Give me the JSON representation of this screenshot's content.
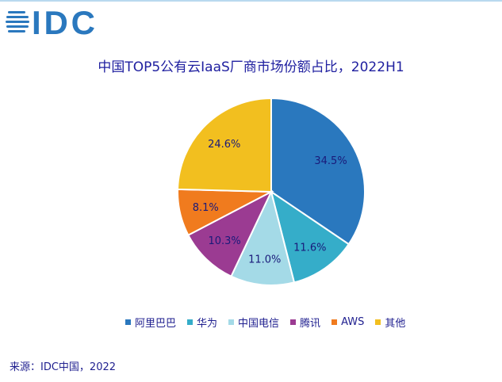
{
  "logo_text": "IDC",
  "source": "来源：IDC中国，2022",
  "chart_data": {
    "type": "pie",
    "title": "中国TOP5公有云IaaS厂商市场份额占比，2022H1",
    "categories": [
      "阿里巴巴",
      "华为",
      "中国电信",
      "腾讯",
      "AWS",
      "其他"
    ],
    "values": [
      34.5,
      11.6,
      11.0,
      10.3,
      8.1,
      24.6
    ],
    "labels": [
      "34.5%",
      "11.6%",
      "11.0%",
      "10.3%",
      "8.1%",
      "24.6%"
    ],
    "colors": [
      "#2a78be",
      "#35adc9",
      "#a4dae7",
      "#9b3b92",
      "#f07b1e",
      "#f2bf1f"
    ],
    "legend_position": "bottom",
    "start": "top-clockwise"
  }
}
